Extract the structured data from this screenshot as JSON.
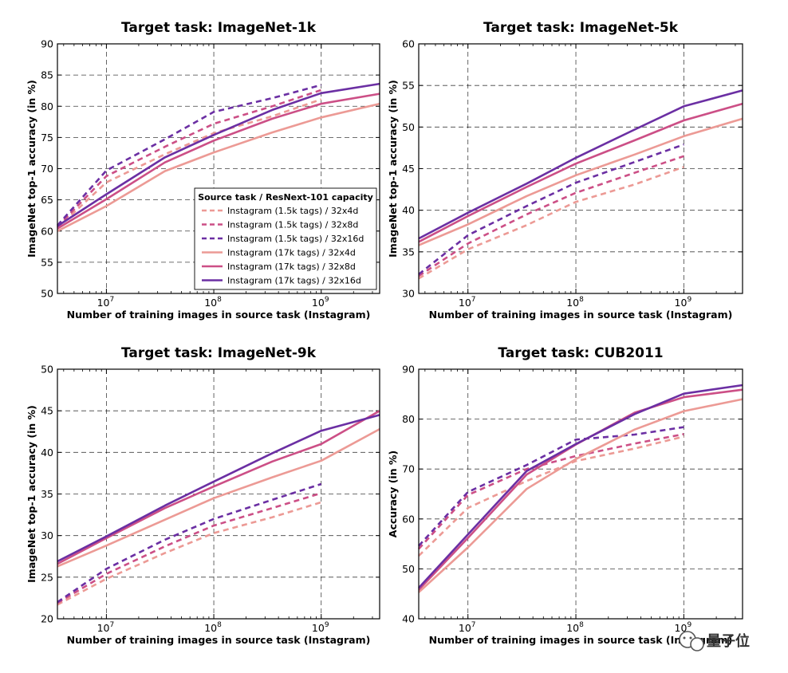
{
  "colors": {
    "c4": "#ec9a95",
    "c8": "#cc4f86",
    "c16": "#6b2fa3"
  },
  "watermark": {
    "icon": "wechat-logo-icon",
    "text": "量子位"
  },
  "chart_data": [
    {
      "type": "line",
      "title": "Target task: ImageNet-1k",
      "xlabel": "Number of training images in source task (Instagram)",
      "ylabel": "ImageNet top-1 accuracy (in %)",
      "xscale": "log",
      "xlim": [
        3500000,
        3500000000
      ],
      "ylim": [
        50,
        90
      ],
      "yticks": [
        50,
        55,
        60,
        65,
        70,
        75,
        80,
        85,
        90
      ],
      "xticks": [
        10000000,
        100000000,
        1000000000
      ],
      "xtick_labels": [
        [
          "10",
          "7"
        ],
        [
          "10",
          "8"
        ],
        [
          "10",
          "9"
        ]
      ],
      "grid": true,
      "legend": {
        "title": "Source task / ResNext-101 capacity",
        "placement": "lower-right",
        "entries": [
          "Instagram (1.5k tags) / 32x4d",
          "Instagram (1.5k tags) / 32x8d",
          "Instagram (1.5k tags) / 32x16d",
          "Instagram (17k tags) / 32x4d",
          "Instagram (17k tags) / 32x8d",
          "Instagram (17k tags) / 32x16d"
        ]
      },
      "series": [
        {
          "name": "Instagram (1.5k tags) / 32x4d",
          "style": "dashed",
          "color": "c4",
          "x": [
            3500000,
            10000000,
            35000000,
            100000000,
            350000000,
            1000000000
          ],
          "y": [
            60.5,
            67.8,
            72.3,
            75.7,
            78.4,
            81.1
          ]
        },
        {
          "name": "Instagram (1.5k tags) / 32x8d",
          "style": "dashed",
          "color": "c8",
          "x": [
            3500000,
            10000000,
            35000000,
            100000000,
            350000000,
            1000000000
          ],
          "y": [
            60.7,
            68.8,
            73.5,
            77.2,
            80.0,
            82.6
          ]
        },
        {
          "name": "Instagram (1.5k tags) / 32x16d",
          "style": "dashed",
          "color": "c16",
          "x": [
            3500000,
            10000000,
            35000000,
            100000000,
            350000000,
            1000000000
          ],
          "y": [
            60.9,
            69.7,
            74.7,
            79.1,
            81.3,
            83.4
          ]
        },
        {
          "name": "Instagram (17k tags) / 32x4d",
          "style": "solid",
          "color": "c4",
          "x": [
            3500000,
            10000000,
            35000000,
            100000000,
            350000000,
            1000000000,
            3500000000
          ],
          "y": [
            60.0,
            64.0,
            69.6,
            72.6,
            75.8,
            78.2,
            80.4
          ]
        },
        {
          "name": "Instagram (17k tags) / 32x8d",
          "style": "solid",
          "color": "c8",
          "x": [
            3500000,
            10000000,
            35000000,
            100000000,
            350000000,
            1000000000,
            3500000000
          ],
          "y": [
            60.4,
            65.1,
            71.0,
            74.5,
            78.0,
            80.4,
            82.0
          ]
        },
        {
          "name": "Instagram (17k tags) / 32x16d",
          "style": "solid",
          "color": "c16",
          "x": [
            3500000,
            10000000,
            35000000,
            100000000,
            350000000,
            1000000000,
            3500000000
          ],
          "y": [
            60.8,
            65.9,
            71.8,
            75.4,
            79.4,
            82.1,
            83.6
          ]
        }
      ]
    },
    {
      "type": "line",
      "title": "Target task: ImageNet-5k",
      "xlabel": "Number of training images in source task (Instagram)",
      "ylabel": "ImageNet top-1 accuracy (in %)",
      "xscale": "log",
      "xlim": [
        3500000,
        3500000000
      ],
      "ylim": [
        30,
        60
      ],
      "yticks": [
        30,
        35,
        40,
        45,
        50,
        55,
        60
      ],
      "xticks": [
        10000000,
        100000000,
        1000000000
      ],
      "xtick_labels": [
        [
          "10",
          "7"
        ],
        [
          "10",
          "8"
        ],
        [
          "10",
          "9"
        ]
      ],
      "grid": true,
      "series": [
        {
          "name": "Instagram (1.5k tags) / 32x4d",
          "style": "dashed",
          "color": "c4",
          "x": [
            3500000,
            10000000,
            35000000,
            100000000,
            350000000,
            1000000000
          ],
          "y": [
            31.8,
            35.3,
            38.2,
            41.0,
            43.1,
            45.2
          ]
        },
        {
          "name": "Instagram (1.5k tags) / 32x8d",
          "style": "dashed",
          "color": "c8",
          "x": [
            3500000,
            10000000,
            35000000,
            100000000,
            350000000,
            1000000000
          ],
          "y": [
            32.1,
            36.0,
            39.5,
            42.1,
            44.5,
            46.5
          ]
        },
        {
          "name": "Instagram (1.5k tags) / 32x16d",
          "style": "dashed",
          "color": "c16",
          "x": [
            3500000,
            10000000,
            35000000,
            100000000,
            350000000,
            1000000000
          ],
          "y": [
            32.3,
            37.0,
            40.5,
            43.3,
            45.8,
            47.9
          ]
        },
        {
          "name": "Instagram (17k tags) / 32x4d",
          "style": "solid",
          "color": "c4",
          "x": [
            3500000,
            10000000,
            35000000,
            100000000,
            350000000,
            1000000000,
            3500000000
          ],
          "y": [
            35.8,
            38.3,
            41.7,
            44.2,
            46.7,
            48.9,
            51.0
          ]
        },
        {
          "name": "Instagram (17k tags) / 32x8d",
          "style": "solid",
          "color": "c8",
          "x": [
            3500000,
            10000000,
            35000000,
            100000000,
            350000000,
            1000000000,
            3500000000
          ],
          "y": [
            36.2,
            39.3,
            42.8,
            45.6,
            48.4,
            50.8,
            52.8
          ]
        },
        {
          "name": "Instagram (17k tags) / 32x16d",
          "style": "solid",
          "color": "c16",
          "x": [
            3500000,
            10000000,
            35000000,
            100000000,
            350000000,
            1000000000,
            3500000000
          ],
          "y": [
            36.6,
            39.7,
            43.2,
            46.3,
            49.7,
            52.5,
            54.4
          ]
        }
      ]
    },
    {
      "type": "line",
      "title": "Target task: ImageNet-9k",
      "xlabel": "Number of training images in source task (Instagram)",
      "ylabel": "ImageNet top-1 accuracy (in %)",
      "xscale": "log",
      "xlim": [
        3500000,
        3500000000
      ],
      "ylim": [
        20,
        50
      ],
      "yticks": [
        20,
        25,
        30,
        35,
        40,
        45,
        50
      ],
      "xticks": [
        10000000,
        100000000,
        1000000000
      ],
      "xtick_labels": [
        [
          "10",
          "7"
        ],
        [
          "10",
          "8"
        ],
        [
          "10",
          "9"
        ]
      ],
      "grid": true,
      "series": [
        {
          "name": "Instagram (1.5k tags) / 32x4d",
          "style": "dashed",
          "color": "c4",
          "x": [
            3500000,
            10000000,
            35000000,
            100000000,
            350000000,
            1000000000
          ],
          "y": [
            21.7,
            24.8,
            27.9,
            30.3,
            32.2,
            34.0
          ]
        },
        {
          "name": "Instagram (1.5k tags) / 32x8d",
          "style": "dashed",
          "color": "c8",
          "x": [
            3500000,
            10000000,
            35000000,
            100000000,
            350000000,
            1000000000
          ],
          "y": [
            21.9,
            25.4,
            28.7,
            31.2,
            33.3,
            35.1
          ]
        },
        {
          "name": "Instagram (1.5k tags) / 32x16d",
          "style": "dashed",
          "color": "c16",
          "x": [
            3500000,
            10000000,
            35000000,
            100000000,
            350000000,
            1000000000
          ],
          "y": [
            22.0,
            26.0,
            29.5,
            32.0,
            34.3,
            36.2
          ]
        },
        {
          "name": "Instagram (17k tags) / 32x4d",
          "style": "solid",
          "color": "c4",
          "x": [
            3500000,
            10000000,
            35000000,
            100000000,
            350000000,
            1000000000,
            3500000000
          ],
          "y": [
            26.3,
            28.8,
            31.9,
            34.5,
            37.0,
            39.0,
            42.8
          ]
        },
        {
          "name": "Instagram (17k tags) / 32x8d",
          "style": "solid",
          "color": "c8",
          "x": [
            3500000,
            10000000,
            35000000,
            100000000,
            350000000,
            1000000000,
            3500000000
          ],
          "y": [
            26.6,
            29.7,
            33.3,
            35.9,
            38.9,
            41.0,
            45.0
          ]
        },
        {
          "name": "Instagram (17k tags) / 32x16d",
          "style": "solid",
          "color": "c16",
          "x": [
            3500000,
            10000000,
            35000000,
            100000000,
            350000000,
            1000000000,
            3500000000
          ],
          "y": [
            26.9,
            29.9,
            33.6,
            36.5,
            39.9,
            42.6,
            44.5
          ]
        }
      ]
    },
    {
      "type": "line",
      "title": "Target task: CUB2011",
      "xlabel": "Number of training images in source task (Instagram)",
      "ylabel": "Accuracy (in %)",
      "xscale": "log",
      "xlim": [
        3500000,
        3500000000
      ],
      "ylim": [
        40,
        90
      ],
      "yticks": [
        40,
        50,
        60,
        70,
        80,
        90
      ],
      "xticks": [
        10000000,
        100000000,
        1000000000
      ],
      "xtick_labels": [
        [
          "10",
          "7"
        ],
        [
          "10",
          "8"
        ],
        [
          "10",
          "9"
        ]
      ],
      "grid": true,
      "series": [
        {
          "name": "Instagram (1.5k tags) / 32x4d",
          "style": "dashed",
          "color": "c4",
          "x": [
            3500000,
            10000000,
            35000000,
            100000000,
            350000000,
            1000000000
          ],
          "y": [
            52.6,
            62.2,
            67.6,
            71.6,
            74.1,
            76.5
          ]
        },
        {
          "name": "Instagram (1.5k tags) / 32x8d",
          "style": "dashed",
          "color": "c8",
          "x": [
            3500000,
            10000000,
            35000000,
            100000000,
            350000000,
            1000000000
          ],
          "y": [
            54.0,
            64.8,
            70.0,
            72.6,
            75.1,
            77.0
          ]
        },
        {
          "name": "Instagram (1.5k tags) / 32x16d",
          "style": "dashed",
          "color": "c16",
          "x": [
            3500000,
            10000000,
            35000000,
            100000000,
            350000000,
            1000000000
          ],
          "y": [
            54.6,
            65.4,
            70.8,
            75.9,
            76.9,
            78.4
          ]
        },
        {
          "name": "Instagram (17k tags) / 32x4d",
          "style": "solid",
          "color": "c4",
          "x": [
            3500000,
            10000000,
            35000000,
            100000000,
            350000000,
            1000000000,
            3500000000
          ],
          "y": [
            45.3,
            54.3,
            66.0,
            72.0,
            77.9,
            81.6,
            84.0
          ]
        },
        {
          "name": "Instagram (17k tags) / 32x8d",
          "style": "solid",
          "color": "c8",
          "x": [
            3500000,
            10000000,
            35000000,
            100000000,
            350000000,
            1000000000,
            3500000000
          ],
          "y": [
            45.8,
            56.2,
            68.9,
            74.9,
            81.3,
            84.4,
            85.9
          ]
        },
        {
          "name": "Instagram (17k tags) / 32x16d",
          "style": "solid",
          "color": "c16",
          "x": [
            3500000,
            10000000,
            35000000,
            100000000,
            350000000,
            1000000000,
            3500000000
          ],
          "y": [
            46.2,
            56.9,
            69.6,
            75.0,
            81.0,
            85.1,
            86.8
          ]
        }
      ]
    }
  ]
}
